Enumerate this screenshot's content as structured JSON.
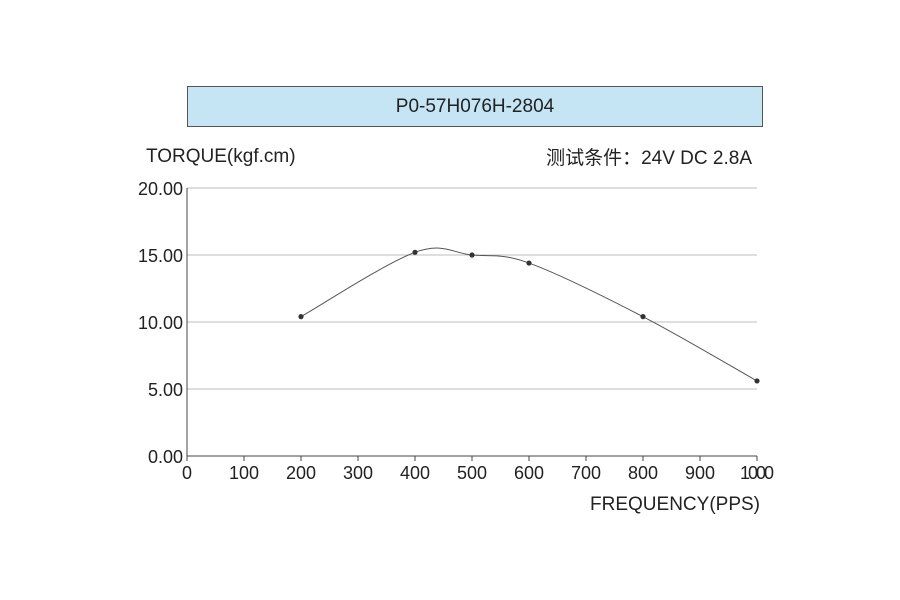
{
  "chart_data": {
    "type": "line",
    "title": "P0-57H076H-2804",
    "subtitle": "测试条件：24V DC  2.8A",
    "xlabel": "FREQUENCY(PPS)",
    "ylabel": "TORQUE(kgf.cm)",
    "xlim": [
      0,
      1000
    ],
    "ylim": [
      0,
      20
    ],
    "x_ticks": [
      "0",
      "100",
      "200",
      "300",
      "400",
      "500",
      "600",
      "700",
      "800",
      "900",
      "1000"
    ],
    "y_ticks": [
      "0.00",
      "5.00",
      "10.00",
      "15.00",
      "20.00"
    ],
    "grid": "horizontal",
    "series": [
      {
        "x": [
          200,
          400,
          500,
          600,
          800,
          1000
        ],
        "values": [
          10.4,
          15.2,
          15.0,
          14.4,
          10.4,
          5.6
        ]
      }
    ]
  }
}
